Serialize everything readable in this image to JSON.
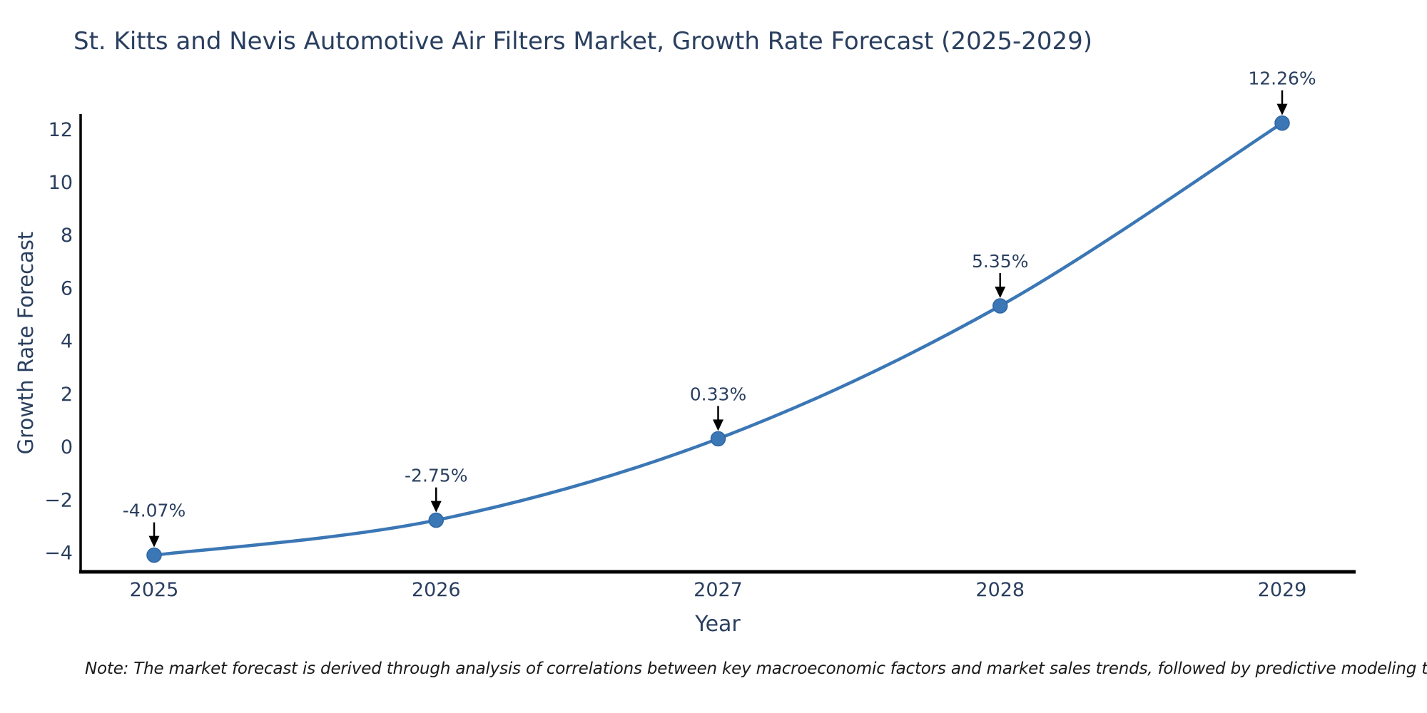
{
  "chart_data": {
    "type": "line",
    "title": "St. Kitts and Nevis Automotive Air Filters Market, Growth Rate Forecast (2025-2029)",
    "xlabel": "Year",
    "ylabel": "Growth Rate Forecast",
    "categories": [
      "2025",
      "2026",
      "2027",
      "2028",
      "2029"
    ],
    "series": [
      {
        "name": "Growth Rate Forecast",
        "values": [
          -4.07,
          -2.75,
          0.33,
          5.35,
          12.26
        ]
      }
    ],
    "point_labels": [
      "-4.07%",
      "-2.75%",
      "0.33%",
      "5.35%",
      "12.26%"
    ],
    "ylim": [
      -4.7,
      12.6
    ],
    "yticks": [
      -4,
      -2,
      0,
      2,
      4,
      6,
      8,
      10,
      12
    ],
    "ytick_labels": [
      "−4",
      "−2",
      "0",
      "2",
      "4",
      "6",
      "8",
      "10",
      "12"
    ],
    "grid": false,
    "legend": "none",
    "line_shape": "spline",
    "line_color": "#3b77b5",
    "marker_color": "#3b77b5",
    "axis_color": "#000000",
    "arrow_color": "#000000",
    "text_color": "#2a3f5f"
  },
  "note": "Note: The market forecast is derived through analysis of correlations between key macroeconomic factors and market sales trends, followed by predictive modeling to project future sales"
}
